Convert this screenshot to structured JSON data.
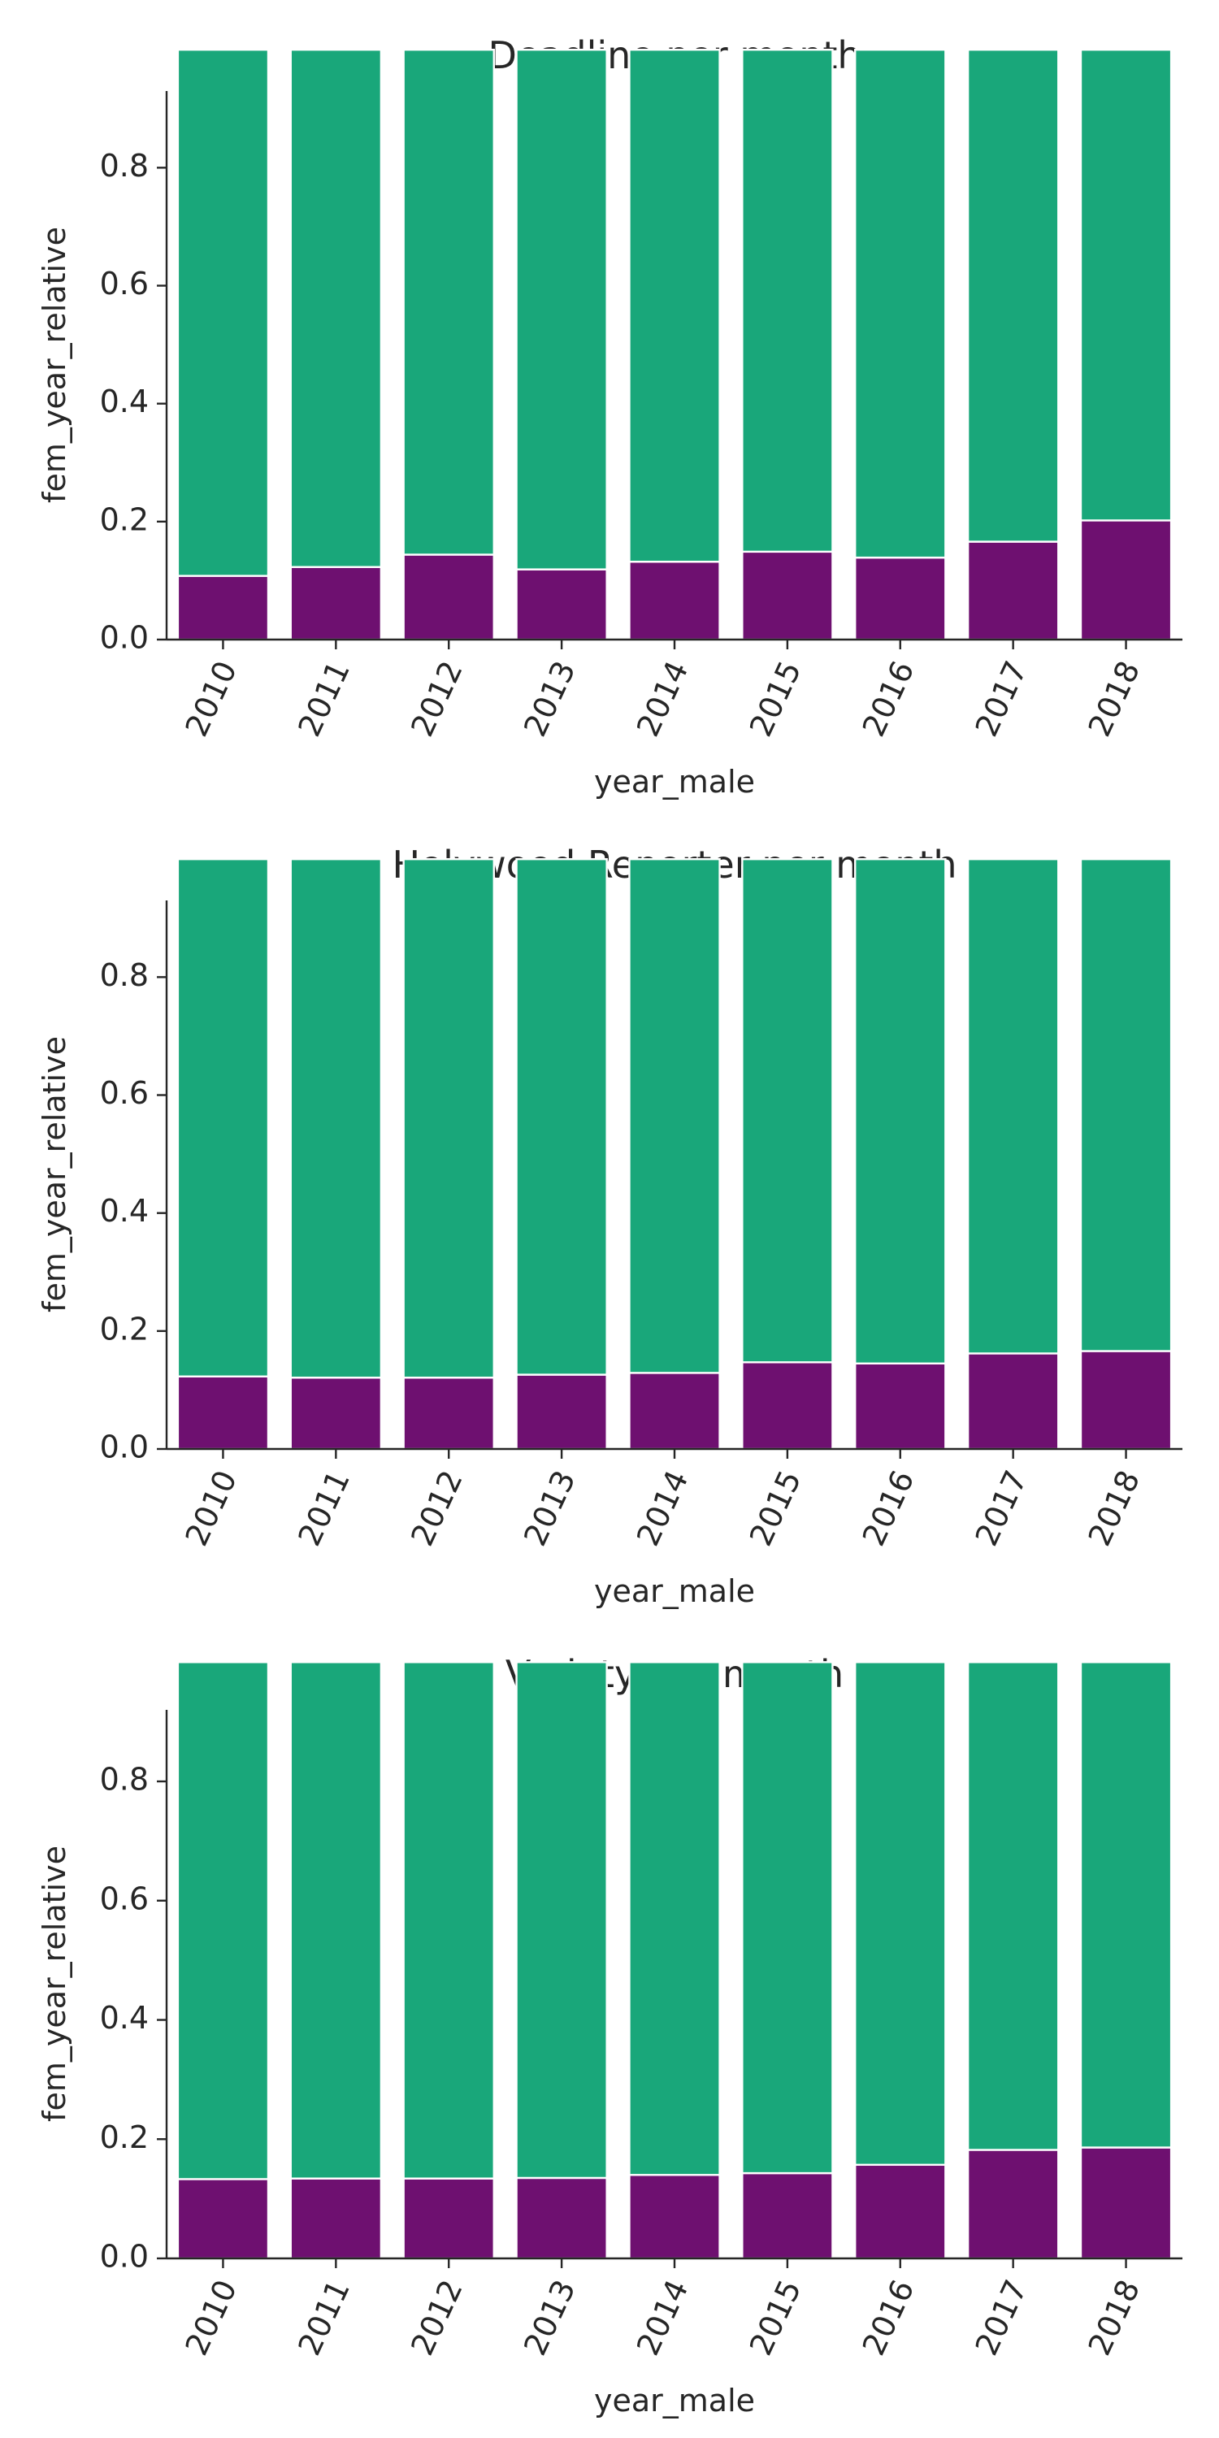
{
  "colors": {
    "female": "#6e1070",
    "male": "#19a77a",
    "axis": "#262626",
    "bar_edge": "#ffffff"
  },
  "chart_data": [
    {
      "type": "bar",
      "stacked": true,
      "title": "Deadline per month",
      "xlabel": "year_male",
      "ylabel": "fem_year_relative",
      "categories": [
        "2010",
        "2011",
        "2012",
        "2013",
        "2014",
        "2015",
        "2016",
        "2017",
        "2018"
      ],
      "yticks": [
        "0.0",
        "0.2",
        "0.4",
        "0.6",
        "0.8"
      ],
      "ylim": [
        0,
        0.93
      ],
      "series": [
        {
          "values": [
            0.108,
            0.123,
            0.144,
            0.119,
            0.132,
            0.149,
            0.139,
            0.166,
            0.202
          ]
        },
        {
          "values": [
            0.892,
            0.877,
            0.856,
            0.881,
            0.868,
            0.851,
            0.861,
            0.834,
            0.798
          ]
        }
      ]
    },
    {
      "type": "bar",
      "stacked": true,
      "title": "Holywood Reporter per month",
      "xlabel": "year_male",
      "ylabel": "fem_year_relative",
      "categories": [
        "2010",
        "2011",
        "2012",
        "2013",
        "2014",
        "2015",
        "2016",
        "2017",
        "2018"
      ],
      "yticks": [
        "0.0",
        "0.2",
        "0.4",
        "0.6",
        "0.8"
      ],
      "ylim": [
        0,
        0.93
      ],
      "series": [
        {
          "values": [
            0.123,
            0.121,
            0.121,
            0.126,
            0.129,
            0.147,
            0.145,
            0.162,
            0.166
          ]
        },
        {
          "values": [
            0.877,
            0.879,
            0.879,
            0.874,
            0.871,
            0.853,
            0.855,
            0.838,
            0.834
          ]
        }
      ]
    },
    {
      "type": "bar",
      "stacked": true,
      "title": "Variety per month",
      "xlabel": "year_male",
      "ylabel": "fem_year_relative",
      "categories": [
        "2010",
        "2011",
        "2012",
        "2013",
        "2014",
        "2015",
        "2016",
        "2017",
        "2018"
      ],
      "yticks": [
        "0.0",
        "0.2",
        "0.4",
        "0.6",
        "0.8"
      ],
      "ylim": [
        0,
        0.92
      ],
      "series": [
        {
          "values": [
            0.133,
            0.134,
            0.134,
            0.135,
            0.14,
            0.143,
            0.157,
            0.182,
            0.186
          ]
        },
        {
          "values": [
            0.867,
            0.866,
            0.866,
            0.865,
            0.86,
            0.857,
            0.843,
            0.818,
            0.814
          ]
        }
      ]
    }
  ]
}
